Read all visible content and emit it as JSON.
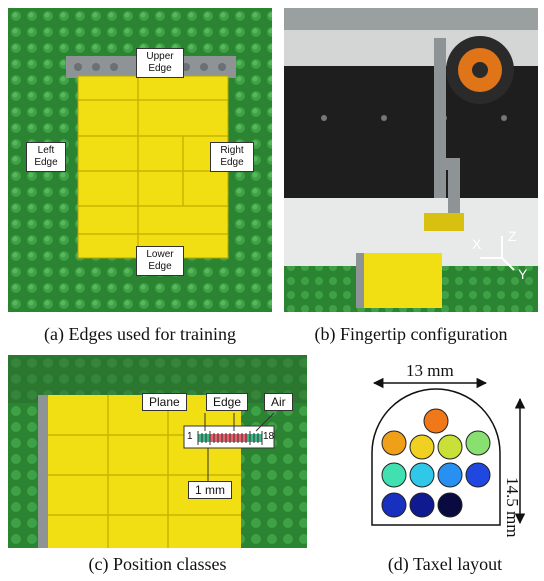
{
  "figure": {
    "panel_a": {
      "caption": "(a) Edges used for training",
      "labels": {
        "upper": "Upper Edge",
        "left": "Left Edge",
        "right": "Right Edge",
        "lower": "Lower Edge"
      }
    },
    "panel_b": {
      "caption": "(b) Fingertip configuration",
      "axes": {
        "x": "X",
        "y": "Y",
        "z": "Z"
      }
    },
    "panel_c": {
      "caption": "(c) Position classes",
      "labels": {
        "plane": "Plane",
        "edge": "Edge",
        "air": "Air",
        "scale": "1 mm"
      },
      "scale_start": "1",
      "scale_end": "18"
    },
    "panel_d": {
      "caption": "(d) Taxel layout",
      "width_label": "13 mm",
      "height_label": "14.5 mm",
      "taxel_colors": [
        "#f07818",
        "#f0a018",
        "#f0d020",
        "#c8e038",
        "#88e070",
        "#40e0b0",
        "#30c8e8",
        "#2890f0",
        "#2048e0",
        "#1830c0",
        "#101a90",
        "#080a40"
      ]
    },
    "colors": {
      "baseplate": "#2e8b35",
      "brick": "#f2e21a",
      "lego_gray": "#8a8f92"
    }
  }
}
